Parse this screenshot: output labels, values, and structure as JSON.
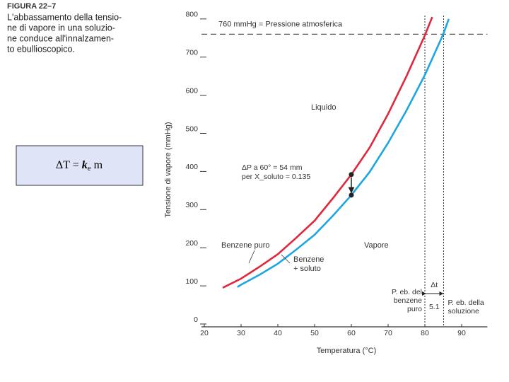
{
  "header": {
    "title": "FIGURA 22–7",
    "caption": [
      "L'abbassamento della tensio-",
      "ne di vapore in una soluzio-",
      "ne conduce all'innalzamen-",
      "to ebullioscopico."
    ]
  },
  "formula": {
    "lhs": "ΔT = ",
    "k": "k",
    "sub": "e",
    "rhs": " m"
  },
  "chart_data": {
    "type": "line",
    "x_label": "Temperatura (°C)",
    "y_label": "Tensione di vapore (mmHg)",
    "xlim": [
      20,
      97
    ],
    "ylim": [
      0,
      820
    ],
    "xticks": [
      20,
      30,
      40,
      50,
      60,
      70,
      80,
      90
    ],
    "yticks": [
      0,
      100,
      200,
      300,
      400,
      500,
      600,
      700,
      800
    ],
    "series": [
      {
        "name": "Benzene puro",
        "color": "#e0283c",
        "x": [
          25,
          30,
          35,
          40,
          45,
          50,
          55,
          60,
          65,
          70,
          75,
          80,
          82
        ],
        "values": [
          95,
          119,
          150,
          183,
          226,
          271,
          330,
          392,
          463,
          551,
          650,
          757,
          805
        ]
      },
      {
        "name": [
          "Benzene",
          "+ soluto"
        ],
        "color": "#1ea6e0",
        "x": [
          29,
          30,
          35,
          40,
          45,
          50,
          55,
          60,
          65,
          70,
          75,
          80,
          85,
          86.5
        ],
        "values": [
          97,
          103,
          129,
          158,
          195,
          234,
          284,
          338,
          399,
          475,
          560,
          653,
          760,
          800
        ]
      }
    ],
    "highlight_x": 60,
    "reference_line": {
      "value": 760,
      "label": "760 mmHg = Pressione atmosferica"
    },
    "boiling_points": [
      {
        "value": 80,
        "label": [
          "P. eb. del",
          "benzene",
          "puro"
        ]
      },
      {
        "value": 85.1,
        "label": [
          "P. eb. della",
          "soluzione"
        ]
      }
    ],
    "delta_t": {
      "symbol": "Δt",
      "value": 5.1
    },
    "annotations": {
      "liquid": "Liquido",
      "vapor": "Vapore",
      "delta_p": [
        "ΔP a 60° = 54 mm",
        "per X_soluto = 0.135"
      ]
    }
  }
}
